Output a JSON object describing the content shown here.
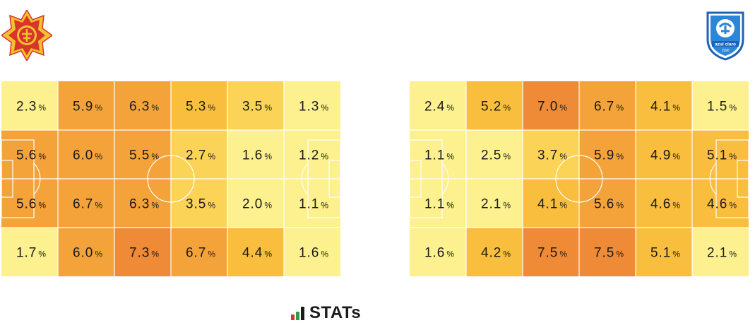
{
  "teams": {
    "home": {
      "crest_icon": "red-gold-star-crest-icon"
    },
    "away": {
      "crest_icon": "blue-shield-crest-icon",
      "crest_text": "azul claro",
      "crest_year": "1990"
    }
  },
  "chart_data": [
    {
      "type": "heatmap",
      "team": "home",
      "rows": 4,
      "cols": 6,
      "unit": "%",
      "values": [
        [
          2.3,
          5.9,
          6.3,
          5.3,
          3.5,
          1.3
        ],
        [
          5.6,
          6.0,
          5.5,
          2.7,
          1.6,
          1.2
        ],
        [
          5.6,
          6.7,
          6.3,
          3.5,
          2.0,
          1.1
        ],
        [
          1.7,
          6.0,
          7.3,
          6.7,
          4.4,
          1.6
        ]
      ]
    },
    {
      "type": "heatmap",
      "team": "away",
      "rows": 4,
      "cols": 6,
      "unit": "%",
      "values": [
        [
          2.4,
          5.2,
          7.0,
          6.7,
          4.1,
          1.5
        ],
        [
          1.1,
          2.5,
          3.7,
          5.9,
          4.9,
          5.1
        ],
        [
          1.1,
          2.1,
          4.1,
          5.6,
          4.6,
          4.6
        ],
        [
          1.6,
          4.2,
          7.5,
          7.5,
          5.1,
          2.1
        ]
      ]
    }
  ],
  "colors": {
    "scale": [
      {
        "max": 2.5,
        "color": "#fdf08e"
      },
      {
        "max": 4.0,
        "color": "#fbd457"
      },
      {
        "max": 5.4,
        "color": "#f9be3e"
      },
      {
        "max": 6.9,
        "color": "#f3a33a"
      },
      {
        "max": 99,
        "color": "#ef8a37"
      }
    ],
    "pitch_lines": "#ffffff",
    "text": "#1a1a1a"
  },
  "footer": {
    "logo_text": "STATs",
    "logo_icon": "stats-bars-icon"
  }
}
